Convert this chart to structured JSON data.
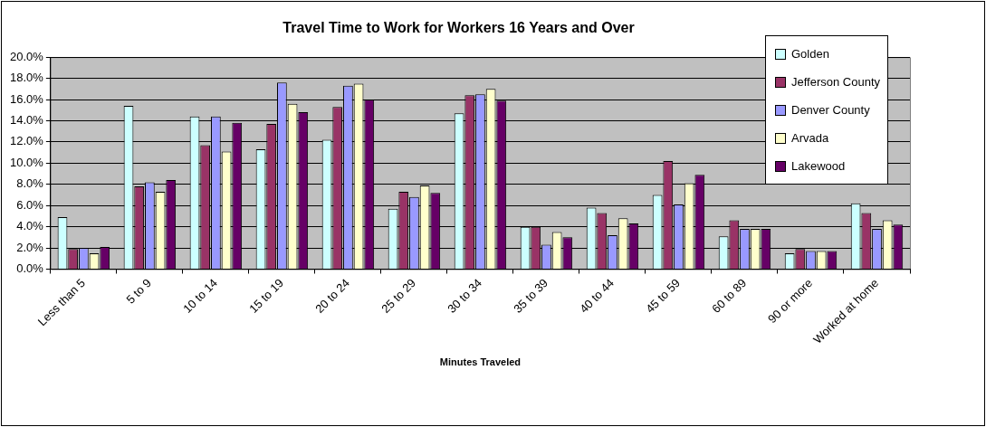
{
  "chart_data": {
    "type": "bar",
    "title": "Travel Time to Work for Workers 16 Years and Over",
    "xlabel": "Minutes Traveled",
    "categories": [
      "Less than 5",
      "5 to 9",
      "10 to 14",
      "15 to 19",
      "20 to 24",
      "25 to 29",
      "30 to 34",
      "35 to 39",
      "40 to 44",
      "45 to 59",
      "60 to 89",
      "90 or more",
      "Worked at home"
    ],
    "series": [
      {
        "name": "Golden",
        "color": "#ccffff",
        "values": [
          4.9,
          15.4,
          14.4,
          11.3,
          12.2,
          5.7,
          14.7,
          4.0,
          5.8,
          7.0,
          3.1,
          1.5,
          6.2
        ]
      },
      {
        "name": "Jefferson County",
        "color": "#993366",
        "values": [
          1.9,
          7.8,
          11.7,
          13.7,
          15.3,
          7.3,
          16.4,
          4.0,
          5.3,
          10.2,
          4.6,
          1.9,
          5.3
        ]
      },
      {
        "name": "Denver County",
        "color": "#9999ff",
        "values": [
          2.0,
          8.2,
          14.4,
          17.6,
          17.3,
          6.8,
          16.5,
          2.3,
          3.2,
          6.1,
          3.8,
          1.7,
          3.8
        ]
      },
      {
        "name": "Arvada",
        "color": "#ffffcc",
        "values": [
          1.5,
          7.3,
          11.1,
          15.6,
          17.5,
          7.9,
          17.0,
          3.5,
          4.8,
          8.1,
          3.8,
          1.7,
          4.6
        ]
      },
      {
        "name": "Lakewood",
        "color": "#660066",
        "values": [
          2.1,
          8.4,
          13.8,
          14.8,
          16.0,
          7.2,
          15.9,
          3.0,
          4.3,
          8.9,
          3.8,
          1.7,
          4.2
        ]
      }
    ],
    "ylim": [
      0,
      20
    ],
    "yticks": [
      {
        "value": 0,
        "label": "0.0%"
      },
      {
        "value": 2,
        "label": "2.0%"
      },
      {
        "value": 4,
        "label": "4.0%"
      },
      {
        "value": 6,
        "label": "6.0%"
      },
      {
        "value": 8,
        "label": "8.0%"
      },
      {
        "value": 10,
        "label": "10.0%"
      },
      {
        "value": 12,
        "label": "12.0%"
      },
      {
        "value": 14,
        "label": "14.0%"
      },
      {
        "value": 16,
        "label": "16.0%"
      },
      {
        "value": 18,
        "label": "18.0%"
      },
      {
        "value": 20,
        "label": "20.0%"
      }
    ],
    "grid": "y",
    "legend": "top right"
  }
}
